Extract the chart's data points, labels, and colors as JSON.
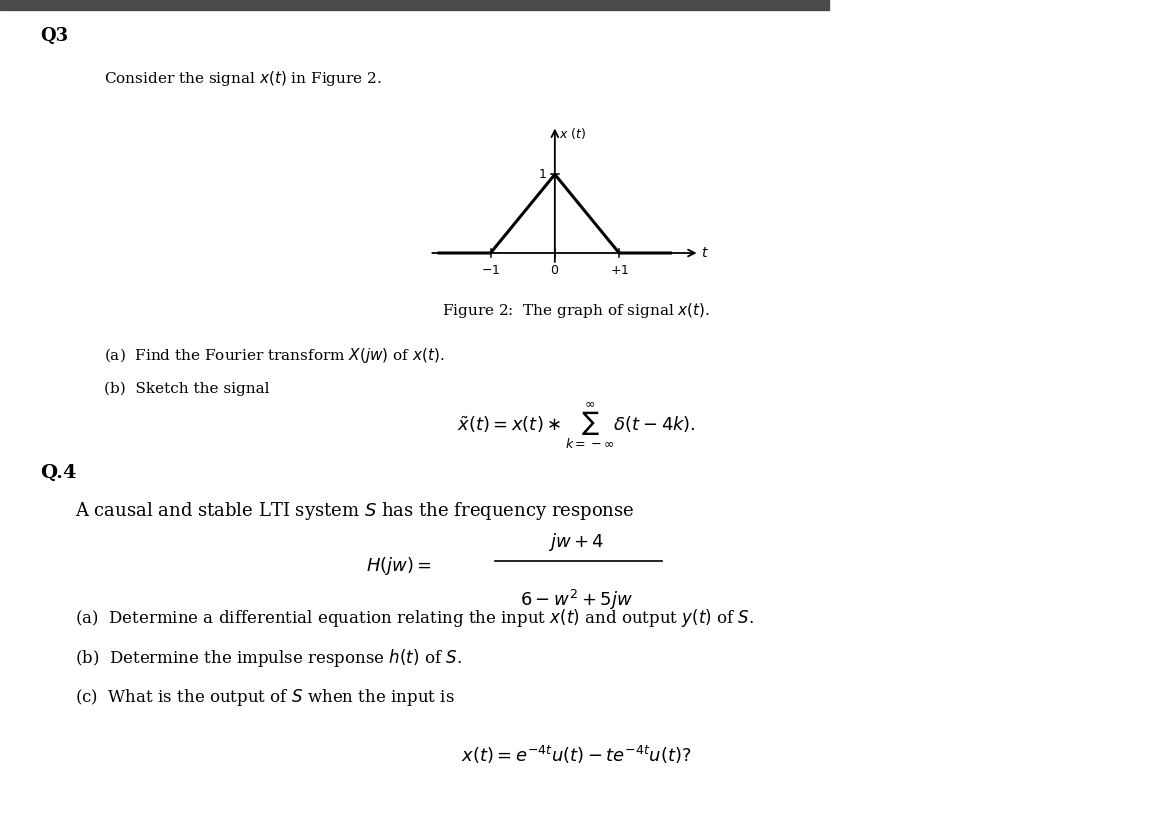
{
  "background_color": "#ffffff",
  "top_bar_color": "#4a4a4a",
  "q3_label": "Q3",
  "intro_text": "Consider the signal $x(t)$ in Figure 2.",
  "figure_caption": "Figure 2:  The graph of signal $x(t)$.",
  "part_a_q3_text": "(a)  Find the Fourier transform $X(jw)$ of $x(t)$.",
  "part_b_q3_text": "(b)  Sketch the signal",
  "q4_label": "Q.4",
  "q4_intro": "A causal and stable LTI system $S$ has the frequency response",
  "part_a_q4_text": "(a)  Determine a differential equation relating the input $x(t)$ and output $y(t)$ of $S$.",
  "part_b_q4_text": "(b)  Determine the impulse response $h(t)$ of $S$.",
  "part_c_q4_text": "(c)  What is the output of $S$ when the input is"
}
